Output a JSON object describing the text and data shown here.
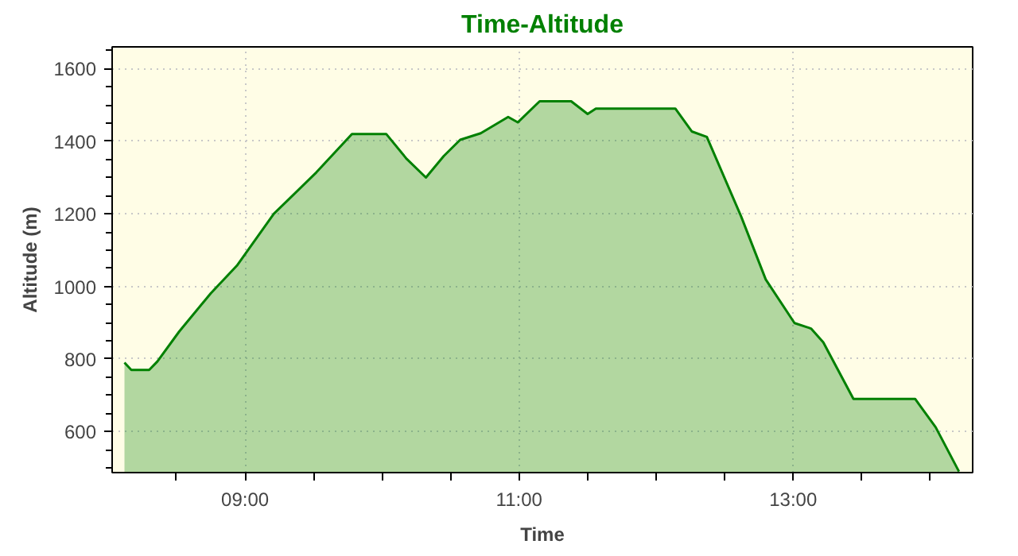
{
  "chart_data": {
    "type": "area",
    "title": "Time-Altitude",
    "xlabel": "Time",
    "ylabel": "Altitude (m)",
    "x": [
      8.12,
      8.17,
      8.3,
      8.36,
      8.52,
      8.75,
      8.94,
      9.21,
      9.52,
      9.78,
      10.03,
      10.18,
      10.32,
      10.45,
      10.57,
      10.72,
      10.92,
      10.99,
      11.15,
      11.38,
      11.5,
      11.56,
      12.14,
      12.26,
      12.37,
      12.62,
      12.8,
      13.01,
      13.13,
      13.22,
      13.44,
      13.89,
      14.04,
      14.21
    ],
    "series": [
      {
        "color": "#008000",
        "values": [
          790,
          770,
          770,
          793,
          876,
          981,
          1057,
          1200,
          1314,
          1420,
          1420,
          1351,
          1300,
          1359,
          1404,
          1422,
          1467,
          1452,
          1510,
          1510,
          1475,
          1490,
          1490,
          1427,
          1412,
          1193,
          1019,
          899,
          884,
          846,
          690,
          690,
          612,
          490
        ]
      }
    ],
    "xlim": [
      8.03,
      14.31
    ],
    "ylim": [
      487,
      1660
    ],
    "xticks": [
      {
        "value": 8.5,
        "label": null
      },
      {
        "value": 9,
        "label": "09:00"
      },
      {
        "value": 9.5,
        "label": null
      },
      {
        "value": 10,
        "label": null
      },
      {
        "value": 10.5,
        "label": null
      },
      {
        "value": 11,
        "label": "11:00"
      },
      {
        "value": 11.5,
        "label": null
      },
      {
        "value": 12,
        "label": null
      },
      {
        "value": 12.5,
        "label": null
      },
      {
        "value": 13,
        "label": "13:00"
      },
      {
        "value": 13.5,
        "label": null
      },
      {
        "value": 14,
        "label": null
      }
    ],
    "yticks": [
      600,
      800,
      1000,
      1200,
      1400,
      1600
    ],
    "grid": true,
    "line_style": "solid"
  }
}
